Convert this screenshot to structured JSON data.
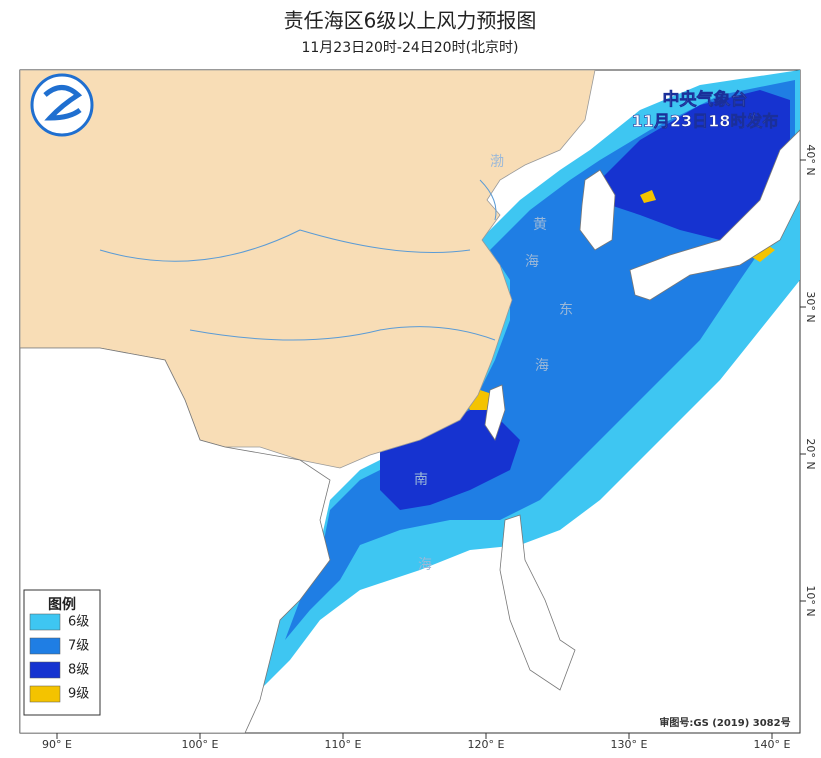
{
  "header": {
    "title": "责任海区6级以上风力预报图",
    "subtitle": "11月23日20时-24日20时(北京时)"
  },
  "issuer": {
    "name": "中央气象台",
    "issued": "11月23日18时发布"
  },
  "legend": {
    "title": "图例",
    "items": [
      {
        "label": "6级",
        "color": "#3ec6f2"
      },
      {
        "label": "7级",
        "color": "#1f7ee4"
      },
      {
        "label": "8级",
        "color": "#1633d0"
      },
      {
        "label": "9级",
        "color": "#f4c300"
      }
    ]
  },
  "sea_labels": [
    "渤",
    "黄",
    "海",
    "东",
    "海",
    "南",
    "海"
  ],
  "longitude_labels": [
    "90° E",
    "100° E",
    "110° E",
    "120° E",
    "130° E",
    "140° E"
  ],
  "latitude_labels": [
    "40° N",
    "30° N",
    "20° N",
    "10° N"
  ],
  "map_approval": "审图号:GS (2019) 3082号"
}
